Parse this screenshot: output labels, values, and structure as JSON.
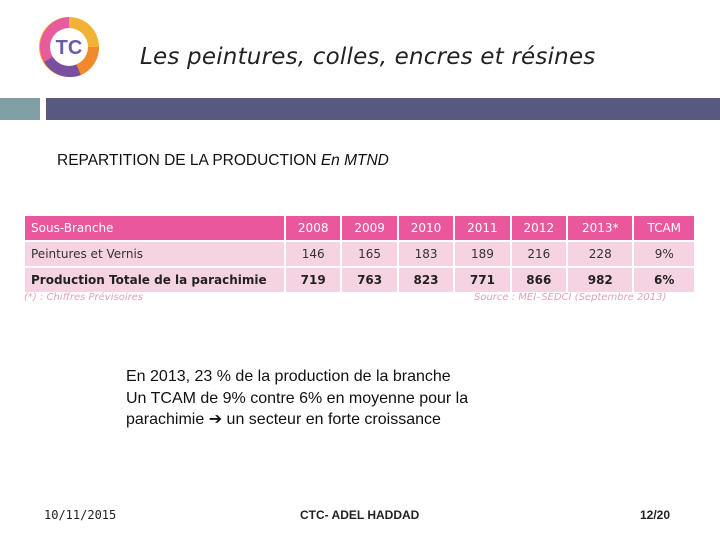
{
  "header": {
    "logo_text": "TC",
    "title": "Les peintures, colles, encres et résines"
  },
  "colors": {
    "accent_bar_left": "#7f9fa4",
    "accent_bar_right": "#565a80",
    "table_header": "#e9579c",
    "table_row": "#f6d3e2"
  },
  "section": {
    "subtitle_prefix": "REPARTITION DE LA PRODUCTION ",
    "subtitle_unit": "En MTND"
  },
  "table": {
    "headers": [
      "Sous-Branche",
      "2008",
      "2009",
      "2010",
      "2011",
      "2012",
      "2013*",
      "TCAM"
    ],
    "rows": [
      [
        "Peintures et Vernis",
        "146",
        "165",
        "183",
        "189",
        "216",
        "228",
        "9%"
      ],
      [
        "Production Totale de la parachimie",
        "719",
        "763",
        "823",
        "771",
        "866",
        "982",
        "6%"
      ]
    ],
    "note": "(*) : Chiffres Prévisoires",
    "source": "Source : MEI–SEDCI (Septembre 2013)"
  },
  "body": {
    "line1": "En 2013, 23 % de la production de la branche",
    "line2": "Un TCAM de 9% contre 6% en moyenne pour la",
    "line3_a": "parachimie ",
    "arrow": "➔",
    "line3_b": " un secteur en forte croissance"
  },
  "footer": {
    "date": "10/11/2015",
    "author": "CTC- ADEL HADDAD",
    "page": "12/20"
  }
}
